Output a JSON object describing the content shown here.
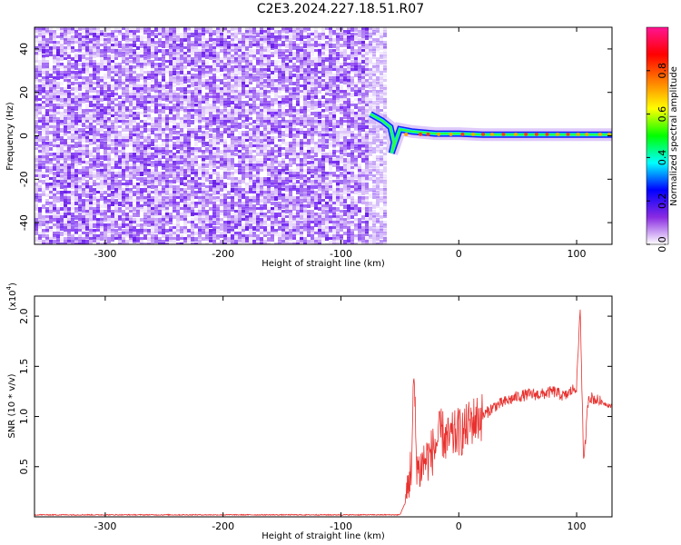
{
  "title": "C2E3.2024.227.18.51.R07",
  "chart_data": [
    {
      "type": "heatmap",
      "xlabel": "Height of straight line (km)",
      "ylabel": "Frequency (Hz)",
      "xlim": [
        -360,
        130
      ],
      "ylim": [
        -50,
        50
      ],
      "xticks": [
        -300,
        -200,
        -100,
        0,
        100
      ],
      "yticks": [
        -40,
        -20,
        0,
        20,
        40
      ],
      "noise_region_x": [
        -360,
        -63
      ],
      "signal_track": [
        {
          "x": -75,
          "y": 10
        },
        {
          "x": -65,
          "y": 7
        },
        {
          "x": -58,
          "y": 4
        },
        {
          "x": -55,
          "y": -3
        },
        {
          "x": -57,
          "y": -8
        },
        {
          "x": -50,
          "y": 3
        },
        {
          "x": -40,
          "y": 2
        },
        {
          "x": -20,
          "y": 1
        },
        {
          "x": 0,
          "y": 1
        },
        {
          "x": 20,
          "y": 0.5
        },
        {
          "x": 60,
          "y": 0.5
        },
        {
          "x": 100,
          "y": 0.5
        },
        {
          "x": 130,
          "y": 0.5
        }
      ],
      "colorbar": {
        "label": "Normalized spectral amplitude",
        "ticks": [
          0.0,
          0.2,
          0.4,
          0.6,
          0.8
        ],
        "range": [
          0,
          1
        ],
        "colors": [
          "#ffffff",
          "#8a2be2",
          "#0000ff",
          "#00ffff",
          "#00ff00",
          "#ffff00",
          "#ff7f00",
          "#ff0000",
          "#ff1493"
        ]
      }
    },
    {
      "type": "line",
      "xlabel": "Height of straight line (km)",
      "ylabel": "SNR (10 * v/v)",
      "scale_note": "(x10",
      "scale_exp": "4",
      "xlim": [
        -360,
        130
      ],
      "ylim": [
        0,
        2.2
      ],
      "xticks": [
        -300,
        -200,
        -100,
        0,
        100
      ],
      "yticks": [
        0.5,
        1.0,
        1.5,
        2.0
      ],
      "ytick_labels": [
        "0.5",
        "1.0",
        "1.5",
        "2.0"
      ],
      "color": "#e8312e",
      "series": [
        {
          "x": [
            -360,
            -100,
            -50,
            -45,
            -40,
            -38,
            -36,
            -34,
            -30,
            -25,
            -20,
            -15,
            -10,
            -5,
            0,
            5,
            10,
            20,
            30,
            40,
            50,
            60,
            70,
            80,
            90,
            95,
            100,
            103,
            106,
            110,
            120,
            130
          ],
          "values": [
            0.02,
            0.02,
            0.02,
            0.15,
            0.55,
            1.4,
            0.6,
            0.45,
            0.55,
            0.6,
            0.7,
            0.85,
            0.75,
            0.8,
            0.85,
            0.85,
            0.95,
            1.0,
            1.1,
            1.15,
            1.2,
            1.22,
            1.22,
            1.25,
            1.2,
            1.25,
            1.3,
            2.1,
            0.5,
            1.2,
            1.15,
            1.1
          ]
        }
      ]
    }
  ]
}
